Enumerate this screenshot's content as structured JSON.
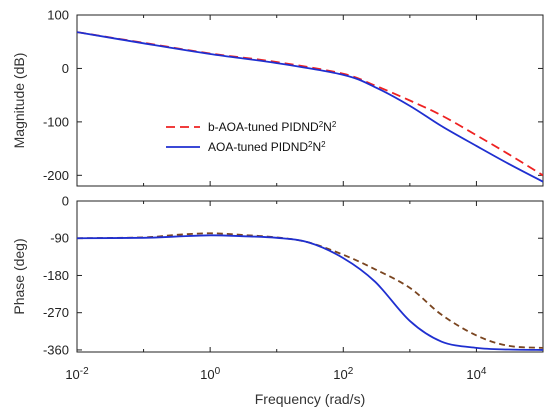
{
  "chart_data": [
    {
      "type": "line",
      "panel": "magnitude",
      "ylabel": "Magnitude (dB)",
      "xscale": "log",
      "xlim": [
        0.01,
        100000
      ],
      "ylim": [
        -220,
        100
      ],
      "yticks": [
        100,
        0,
        -100,
        -200
      ],
      "ytick_labels": [
        "100",
        "0",
        "-100",
        "-200"
      ],
      "legend": {
        "position": "center-left",
        "entries": [
          "b-AOA-tuned PIDND²N²",
          "AOA-tuned PIDND²N²"
        ]
      },
      "series": [
        {
          "name": "b-AOA-tuned PIDND²N²",
          "color": "#ee2222",
          "style": "dashed",
          "x": [
            0.01,
            0.1,
            1,
            10,
            100,
            300,
            1000,
            3000,
            10000,
            30000,
            100000
          ],
          "y": [
            68,
            48,
            28,
            12,
            -10,
            -32,
            -60,
            -88,
            -125,
            -160,
            -200
          ]
        },
        {
          "name": "AOA-tuned PIDND²N²",
          "color": "#1f2fd0",
          "style": "solid",
          "x": [
            0.01,
            0.1,
            1,
            10,
            100,
            300,
            1000,
            3000,
            10000,
            30000,
            100000
          ],
          "y": [
            68,
            47,
            27,
            10,
            -12,
            -35,
            -70,
            -108,
            -145,
            -178,
            -212
          ]
        }
      ]
    },
    {
      "type": "line",
      "panel": "phase",
      "ylabel": "Phase (deg)",
      "xlabel": "Frequency  (rad/s)",
      "xscale": "log",
      "xlim": [
        0.01,
        100000
      ],
      "ylim": [
        -365,
        0
      ],
      "xticks": [
        0.01,
        1,
        100,
        10000
      ],
      "xtick_labels": [
        {
          "base": "10",
          "exp": "-2"
        },
        {
          "base": "10",
          "exp": "0"
        },
        {
          "base": "10",
          "exp": "2"
        },
        {
          "base": "10",
          "exp": "4"
        }
      ],
      "yticks": [
        0,
        -90,
        -180,
        -270,
        -360
      ],
      "ytick_labels": [
        "0",
        "-90",
        "-180",
        "-270",
        "-360"
      ],
      "series": [
        {
          "name": "b-AOA-tuned PIDND²N²",
          "color": "#7a4520",
          "style": "dashed",
          "x": [
            0.01,
            0.1,
            0.3,
            1,
            3,
            10,
            30,
            100,
            300,
            1000,
            3000,
            10000,
            30000,
            100000
          ],
          "y": [
            -90,
            -88,
            -82,
            -78,
            -82,
            -88,
            -100,
            -130,
            -165,
            -210,
            -275,
            -325,
            -350,
            -355
          ]
        },
        {
          "name": "AOA-tuned PIDND²N²",
          "color": "#1f2fd0",
          "style": "solid",
          "x": [
            0.01,
            0.1,
            0.3,
            1,
            3,
            10,
            30,
            100,
            300,
            1000,
            3000,
            10000,
            30000,
            100000
          ],
          "y": [
            -90,
            -89,
            -86,
            -83,
            -85,
            -89,
            -100,
            -138,
            -195,
            -290,
            -340,
            -355,
            -359,
            -360
          ]
        }
      ]
    }
  ]
}
